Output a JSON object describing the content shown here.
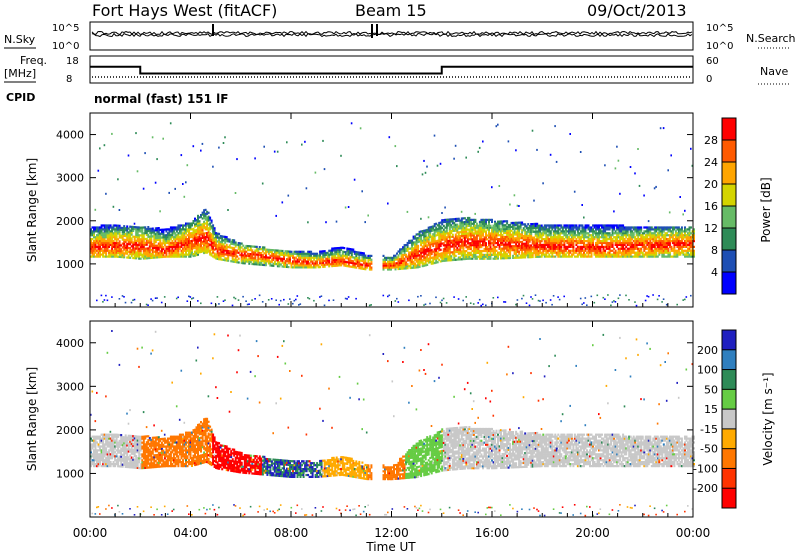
{
  "header": {
    "station": "Fort Hays West (fitACF)",
    "beam": "Beam 15",
    "date": "09/Oct/2013",
    "mode": "normal (fast) 151 lF"
  },
  "side_labels": {
    "nsky": "N.Sky",
    "freq": "Freq.",
    "freq_unit": "[MHz]",
    "cpid": "CPID",
    "nsearch": "N.Search",
    "nave": "Nave",
    "nsky_ticks": [
      "10^5",
      "10^0"
    ],
    "freq_ticks": [
      "18",
      "8"
    ],
    "nsearch_ticks": [
      "10^5",
      "10^0"
    ],
    "nave_ticks": [
      "60",
      "0"
    ]
  },
  "colors": {
    "power": [
      "#0000ff",
      "#1e4fb4",
      "#2e8b57",
      "#66bb66",
      "#d4d400",
      "#ffa500",
      "#ff5a00",
      "#ff0000"
    ],
    "velocity": [
      "#2020c0",
      "#2f7fbf",
      "#2e8b57",
      "#66cc44",
      "#c8c8c8",
      "#ffaa00",
      "#ff7700",
      "#ff3300",
      "#ff0000"
    ],
    "ground_scatter": "#c8c8c8"
  },
  "chart_data": [
    {
      "type": "line",
      "name": "nsky-nsearch-freq-panel",
      "x": [
        "00:00",
        "01:00",
        "02:00",
        "04:00",
        "06:00",
        "08:00",
        "10:00",
        "12:00",
        "14:00",
        "16:00",
        "18:00",
        "20:00",
        "22:00",
        "24:00"
      ],
      "series": [
        {
          "name": "Freq.",
          "values": [
            14,
            14,
            11.5,
            11.5,
            11.5,
            11.5,
            11.5,
            11.5,
            14,
            14,
            14,
            14,
            14,
            14
          ]
        }
      ],
      "ylim": [
        8,
        18
      ]
    },
    {
      "type": "heatmap",
      "name": "power-panel",
      "xlabel": "",
      "ylabel": "Slant Range [km]",
      "xlim": [
        "00:00",
        "24:00"
      ],
      "ylim": [
        0,
        4500
      ],
      "yticks": [
        "1000",
        "2000",
        "3000",
        "4000"
      ],
      "colorbar": {
        "label": "Power [dB]",
        "ticks": [
          "4",
          "8",
          "12",
          "16",
          "20",
          "24",
          "28"
        ]
      },
      "band": {
        "x_hours": [
          0,
          1,
          2,
          3,
          4,
          4.6,
          5,
          6,
          7,
          8,
          9,
          10,
          11,
          12,
          13,
          14,
          15,
          16,
          18,
          20,
          22,
          24
        ],
        "lower_km": [
          1150,
          1150,
          1100,
          1150,
          1150,
          1250,
          1100,
          1000,
          950,
          900,
          900,
          950,
          850,
          850,
          900,
          1050,
          1100,
          1100,
          1150,
          1150,
          1150,
          1150
        ],
        "upper_km": [
          1850,
          1900,
          1850,
          1800,
          1950,
          2300,
          1700,
          1450,
          1350,
          1300,
          1250,
          1400,
          1200,
          1150,
          1700,
          2000,
          2050,
          2000,
          1900,
          1900,
          1850,
          1850
        ],
        "peak_km": [
          1350,
          1400,
          1400,
          1300,
          1500,
          1600,
          1300,
          1200,
          1150,
          1050,
          1000,
          1050,
          950,
          950,
          1200,
          1400,
          1500,
          1450,
          1400,
          1350,
          1400,
          1450
        ]
      }
    },
    {
      "type": "heatmap",
      "name": "velocity-panel",
      "xlabel": "Time UT",
      "ylabel": "Slant Range [km]",
      "xlim": [
        "00:00",
        "24:00"
      ],
      "xticks": [
        "00:00",
        "04:00",
        "08:00",
        "12:00",
        "16:00",
        "20:00",
        "00:00"
      ],
      "ylim": [
        0,
        4500
      ],
      "yticks": [
        "1000",
        "2000",
        "3000",
        "4000"
      ],
      "colorbar": {
        "label": "Velocity [m s⁻¹]",
        "ticks": [
          "200",
          "100",
          "50",
          "15",
          "-15",
          "-50",
          "-100",
          "-200"
        ]
      },
      "segments": [
        {
          "from_h": 0.0,
          "to_h": 2.0,
          "velocity": 0
        },
        {
          "from_h": 2.0,
          "to_h": 4.8,
          "velocity": -60
        },
        {
          "from_h": 4.8,
          "to_h": 6.8,
          "velocity": -220
        },
        {
          "from_h": 6.8,
          "to_h": 9.2,
          "velocity": 160
        },
        {
          "from_h": 9.2,
          "to_h": 11.0,
          "velocity": -40
        },
        {
          "from_h": 11.0,
          "to_h": 12.5,
          "velocity": -60
        },
        {
          "from_h": 12.5,
          "to_h": 14.0,
          "velocity": 60
        },
        {
          "from_h": 14.0,
          "to_h": 24.0,
          "velocity": 0
        }
      ]
    }
  ]
}
